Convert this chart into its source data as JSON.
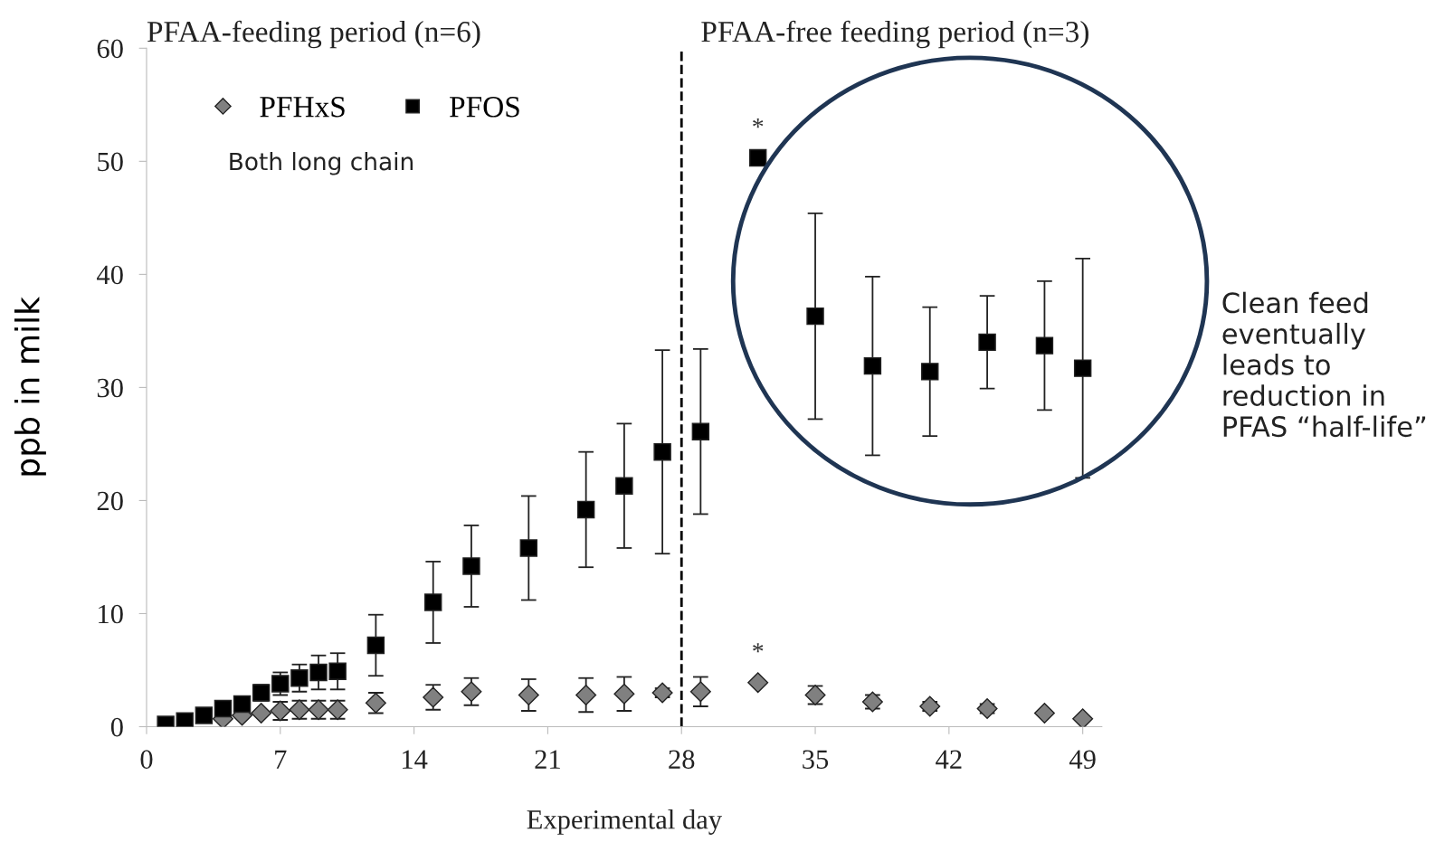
{
  "chart_data": {
    "type": "scatter",
    "xlabel": "Experimental day",
    "ylabel": "ppb in milk",
    "xlim": [
      0,
      50
    ],
    "xticks": [
      0,
      7,
      14,
      21,
      28,
      35,
      42,
      49
    ],
    "ylim": [
      0,
      60
    ],
    "yticks": [
      0,
      10,
      20,
      30,
      40,
      50,
      60
    ],
    "grid": false,
    "legend": "top left",
    "series": [
      {
        "name": "PFHxS",
        "color": "#808080",
        "marker": "diamond",
        "x": [
          4,
          5,
          6,
          7,
          8,
          9,
          10,
          12,
          15,
          17,
          20,
          23,
          25,
          27,
          29,
          32,
          35,
          38,
          41,
          44,
          47,
          49
        ],
        "values": [
          0.7,
          1.0,
          1.2,
          1.4,
          1.5,
          1.5,
          1.5,
          2.1,
          2.6,
          3.1,
          2.8,
          2.8,
          2.9,
          3.0,
          3.1,
          3.9,
          2.8,
          2.2,
          1.8,
          1.6,
          1.2,
          0.7
        ],
        "errors": [
          null,
          null,
          null,
          0.8,
          0.8,
          0.8,
          0.8,
          0.9,
          1.1,
          1.2,
          1.4,
          1.5,
          1.5,
          0.4,
          1.3,
          null,
          0.8,
          0.6,
          0.4,
          0.4,
          null,
          null
        ]
      },
      {
        "name": "PFOS",
        "color": "#000000",
        "marker": "square",
        "x": [
          1,
          2,
          3,
          4,
          5,
          6,
          7,
          8,
          9,
          10,
          12,
          15,
          17,
          20,
          23,
          25,
          27,
          29,
          32,
          35,
          38,
          41,
          44,
          47,
          49
        ],
        "values": [
          0.2,
          0.5,
          1.0,
          1.6,
          2.0,
          3.0,
          3.8,
          4.3,
          4.8,
          4.9,
          7.2,
          11.0,
          14.2,
          15.8,
          19.2,
          21.3,
          24.3,
          26.1,
          50.3,
          36.3,
          31.9,
          31.4,
          34.0,
          33.7,
          31.7
        ],
        "errors": [
          null,
          null,
          null,
          null,
          null,
          0.7,
          1.0,
          1.2,
          1.5,
          1.6,
          2.7,
          3.6,
          3.6,
          4.6,
          5.1,
          5.5,
          9.0,
          7.3,
          null,
          9.1,
          7.9,
          5.7,
          4.1,
          5.7,
          9.7
        ]
      }
    ],
    "ref_lines": [
      {
        "axis": "x",
        "value": 28,
        "line_style": "dashed",
        "color": "#000000"
      }
    ],
    "annotations": [
      "PFAA-feeding period (n=6)",
      "PFAA-free feeding period (n=3)",
      "Both long chain",
      {
        "text": "*",
        "x": 32,
        "y": 50.3
      },
      {
        "text": "*",
        "x": 32,
        "y": 3.9
      },
      "Clean feed\neventually\nleads to\nreduction in\nPFAS “half-life”"
    ]
  }
}
